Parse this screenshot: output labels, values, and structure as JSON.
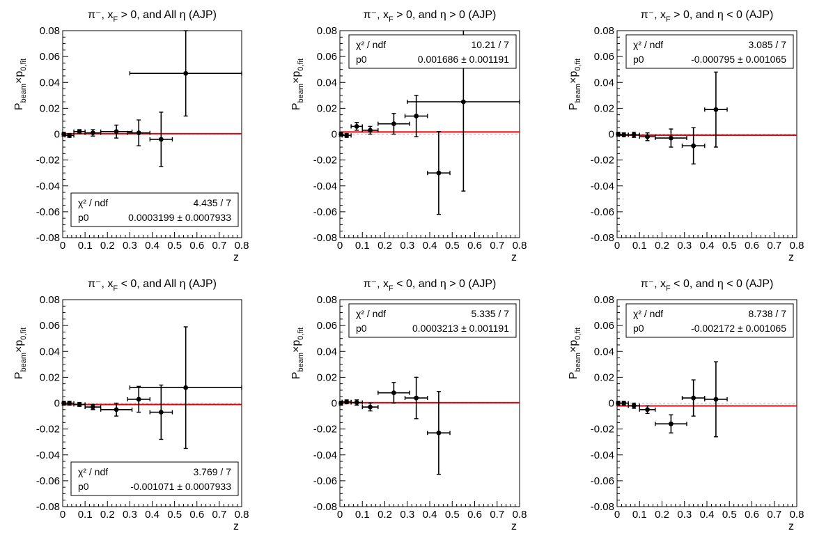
{
  "figure": {
    "background": "#ffffff"
  },
  "style": {
    "fit_color": "#e8000b",
    "zero_line_color": "#bbbbbb",
    "marker_color": "#000000"
  },
  "axes_text": {
    "ylabel_main": "P",
    "ylabel_sub1": "beam",
    "ylabel_times": "×p",
    "ylabel_sub2": "0,fit",
    "xlabel": "z",
    "stat_chi_label": "χ² / ndf",
    "stat_p0_label": "p0",
    "pm": "±"
  },
  "chart_data": [
    {
      "type": "scatter",
      "title_parts": [
        "π⁻, x",
        "F",
        " > 0, and All η (AJP)"
      ],
      "xlim": [
        0,
        0.8
      ],
      "ylim": [
        -0.08,
        0.08
      ],
      "xticks": [
        "0",
        "0.1",
        "0.2",
        "0.3",
        "0.4",
        "0.5",
        "0.6",
        "0.7",
        "0.8"
      ],
      "yticks": [
        "-0.08",
        "-0.06",
        "-0.04",
        "-0.02",
        "0",
        "0.02",
        "0.04",
        "0.06",
        "0.08"
      ],
      "xlabel": "z",
      "legend_position": "bottom-right",
      "points": [
        {
          "x": 0.005,
          "y": 0.0,
          "ex": 0.005,
          "ey": 0.0015
        },
        {
          "x": 0.03,
          "y": -0.001,
          "ex": 0.02,
          "ey": 0.0015
        },
        {
          "x": 0.075,
          "y": 0.002,
          "ex": 0.025,
          "ey": 0.0015
        },
        {
          "x": 0.135,
          "y": 0.001,
          "ex": 0.035,
          "ey": 0.0025
        },
        {
          "x": 0.24,
          "y": 0.002,
          "ex": 0.07,
          "ey": 0.005
        },
        {
          "x": 0.34,
          "y": 0.001,
          "ex": 0.05,
          "ey": 0.01
        },
        {
          "x": 0.44,
          "y": -0.004,
          "ex": 0.05,
          "ey": 0.021
        },
        {
          "x": 0.55,
          "y": 0.047,
          "ex": 0.25,
          "ey": 0.033
        }
      ],
      "fit": {
        "p0": 0.0003199,
        "chi2_ndf": "4.435 / 7",
        "p0_val": "0.0003199",
        "p0_err": "0.0007933"
      }
    },
    {
      "type": "scatter",
      "title_parts": [
        "π⁻, x",
        "F",
        " > 0, and η > 0 (AJP)"
      ],
      "xlim": [
        0,
        0.8
      ],
      "ylim": [
        -0.08,
        0.08
      ],
      "xticks": [
        "0",
        "0.1",
        "0.2",
        "0.3",
        "0.4",
        "0.5",
        "0.6",
        "0.7",
        "0.8"
      ],
      "yticks": [
        "-0.08",
        "-0.06",
        "-0.04",
        "-0.02",
        "0",
        "0.02",
        "0.04",
        "0.06",
        "0.08"
      ],
      "xlabel": "z",
      "legend_position": "top-right",
      "points": [
        {
          "x": 0.005,
          "y": 0.0,
          "ex": 0.005,
          "ey": 0.0015
        },
        {
          "x": 0.03,
          "y": -0.001,
          "ex": 0.02,
          "ey": 0.0015
        },
        {
          "x": 0.075,
          "y": 0.006,
          "ex": 0.025,
          "ey": 0.003
        },
        {
          "x": 0.135,
          "y": 0.003,
          "ex": 0.035,
          "ey": 0.003
        },
        {
          "x": 0.24,
          "y": 0.008,
          "ex": 0.07,
          "ey": 0.008
        },
        {
          "x": 0.34,
          "y": 0.014,
          "ex": 0.05,
          "ey": 0.016
        },
        {
          "x": 0.44,
          "y": -0.03,
          "ex": 0.05,
          "ey": 0.032
        },
        {
          "x": 0.55,
          "y": 0.025,
          "ex": 0.25,
          "ey": 0.069
        }
      ],
      "fit": {
        "p0": 0.001686,
        "chi2_ndf": "10.21 / 7",
        "p0_val": "0.001686",
        "p0_err": "0.001191"
      }
    },
    {
      "type": "scatter",
      "title_parts": [
        "π⁻, x",
        "F",
        " > 0, and η < 0 (AJP)"
      ],
      "xlim": [
        0,
        0.8
      ],
      "ylim": [
        -0.08,
        0.08
      ],
      "xticks": [
        "0",
        "0.1",
        "0.2",
        "0.3",
        "0.4",
        "0.5",
        "0.6",
        "0.7",
        "0.8"
      ],
      "yticks": [
        "-0.08",
        "-0.06",
        "-0.04",
        "-0.02",
        "0",
        "0.02",
        "0.04",
        "0.06",
        "0.08"
      ],
      "xlabel": "z",
      "legend_position": "top-right",
      "points": [
        {
          "x": 0.005,
          "y": 0.0,
          "ex": 0.005,
          "ey": 0.0015
        },
        {
          "x": 0.03,
          "y": -0.0005,
          "ex": 0.02,
          "ey": 0.0015
        },
        {
          "x": 0.075,
          "y": -0.0005,
          "ex": 0.025,
          "ey": 0.002
        },
        {
          "x": 0.135,
          "y": -0.002,
          "ex": 0.035,
          "ey": 0.003
        },
        {
          "x": 0.24,
          "y": -0.003,
          "ex": 0.07,
          "ey": 0.007
        },
        {
          "x": 0.34,
          "y": -0.009,
          "ex": 0.05,
          "ey": 0.014
        },
        {
          "x": 0.44,
          "y": 0.019,
          "ex": 0.05,
          "ey": 0.029
        }
      ],
      "fit": {
        "p0": -0.000795,
        "chi2_ndf": "3.085 / 7",
        "p0_val": "-0.000795",
        "p0_err": "0.001065"
      }
    },
    {
      "type": "scatter",
      "title_parts": [
        "π⁻, x",
        "F",
        " < 0, and All η (AJP)"
      ],
      "xlim": [
        0,
        0.8
      ],
      "ylim": [
        -0.08,
        0.08
      ],
      "xticks": [
        "0",
        "0.1",
        "0.2",
        "0.3",
        "0.4",
        "0.5",
        "0.6",
        "0.7",
        "0.8"
      ],
      "yticks": [
        "-0.08",
        "-0.06",
        "-0.04",
        "-0.02",
        "0",
        "0.02",
        "0.04",
        "0.06",
        "0.08"
      ],
      "xlabel": "z",
      "legend_position": "bottom-right",
      "points": [
        {
          "x": 0.005,
          "y": 0.0,
          "ex": 0.005,
          "ey": 0.0015
        },
        {
          "x": 0.03,
          "y": 0.0,
          "ex": 0.02,
          "ey": 0.0015
        },
        {
          "x": 0.075,
          "y": -0.001,
          "ex": 0.025,
          "ey": 0.0015
        },
        {
          "x": 0.135,
          "y": -0.003,
          "ex": 0.035,
          "ey": 0.002
        },
        {
          "x": 0.24,
          "y": -0.005,
          "ex": 0.07,
          "ey": 0.005
        },
        {
          "x": 0.34,
          "y": 0.003,
          "ex": 0.05,
          "ey": 0.01
        },
        {
          "x": 0.44,
          "y": -0.007,
          "ex": 0.05,
          "ey": 0.021
        },
        {
          "x": 0.55,
          "y": 0.012,
          "ex": 0.25,
          "ey": 0.047
        }
      ],
      "fit": {
        "p0": -0.001071,
        "chi2_ndf": "3.769 / 7",
        "p0_val": "-0.001071",
        "p0_err": "0.0007933"
      }
    },
    {
      "type": "scatter",
      "title_parts": [
        "π⁻, x",
        "F",
        " < 0, and η > 0 (AJP)"
      ],
      "xlim": [
        0,
        0.8
      ],
      "ylim": [
        -0.08,
        0.08
      ],
      "xticks": [
        "0",
        "0.1",
        "0.2",
        "0.3",
        "0.4",
        "0.5",
        "0.6",
        "0.7",
        "0.8"
      ],
      "yticks": [
        "-0.08",
        "-0.06",
        "-0.04",
        "-0.02",
        "0",
        "0.02",
        "0.04",
        "0.06",
        "0.08"
      ],
      "xlabel": "z",
      "legend_position": "top-right",
      "points": [
        {
          "x": 0.005,
          "y": 0.0,
          "ex": 0.005,
          "ey": 0.0015
        },
        {
          "x": 0.03,
          "y": 0.001,
          "ex": 0.02,
          "ey": 0.0015
        },
        {
          "x": 0.075,
          "y": 0.0005,
          "ex": 0.025,
          "ey": 0.002
        },
        {
          "x": 0.135,
          "y": -0.003,
          "ex": 0.035,
          "ey": 0.003
        },
        {
          "x": 0.24,
          "y": 0.008,
          "ex": 0.07,
          "ey": 0.008
        },
        {
          "x": 0.34,
          "y": 0.004,
          "ex": 0.05,
          "ey": 0.016
        },
        {
          "x": 0.44,
          "y": -0.023,
          "ex": 0.05,
          "ey": 0.032
        }
      ],
      "fit": {
        "p0": 0.0003213,
        "chi2_ndf": "5.335 / 7",
        "p0_val": "0.0003213",
        "p0_err": "0.001191"
      }
    },
    {
      "type": "scatter",
      "title_parts": [
        "π⁻, x",
        "F",
        " < 0, and η < 0 (AJP)"
      ],
      "xlim": [
        0,
        0.8
      ],
      "ylim": [
        -0.08,
        0.08
      ],
      "xticks": [
        "0",
        "0.1",
        "0.2",
        "0.3",
        "0.4",
        "0.5",
        "0.6",
        "0.7",
        "0.8"
      ],
      "yticks": [
        "-0.08",
        "-0.06",
        "-0.04",
        "-0.02",
        "0",
        "0.02",
        "0.04",
        "0.06",
        "0.08"
      ],
      "xlabel": "z",
      "legend_position": "top-right",
      "points": [
        {
          "x": 0.005,
          "y": 0.0,
          "ex": 0.005,
          "ey": 0.0015
        },
        {
          "x": 0.03,
          "y": 0.0,
          "ex": 0.02,
          "ey": 0.0015
        },
        {
          "x": 0.075,
          "y": -0.002,
          "ex": 0.025,
          "ey": 0.002
        },
        {
          "x": 0.135,
          "y": -0.005,
          "ex": 0.035,
          "ey": 0.003
        },
        {
          "x": 0.24,
          "y": -0.016,
          "ex": 0.07,
          "ey": 0.007
        },
        {
          "x": 0.34,
          "y": 0.004,
          "ex": 0.05,
          "ey": 0.014
        },
        {
          "x": 0.44,
          "y": 0.003,
          "ex": 0.05,
          "ey": 0.029
        }
      ],
      "fit": {
        "p0": -0.002172,
        "chi2_ndf": "8.738 / 7",
        "p0_val": "-0.002172",
        "p0_err": "0.001065"
      }
    }
  ]
}
